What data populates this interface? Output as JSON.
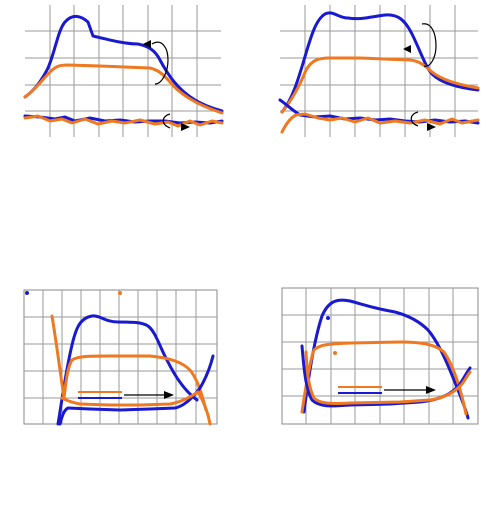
{
  "colors": {
    "series_a": "#1919d2",
    "series_b": "#f07820",
    "grid": "#9a9a9a",
    "annotation": "#000000"
  },
  "chart_data": [
    {
      "type": "line",
      "panel": "top-left",
      "title": "",
      "xlabel": "",
      "ylabel": "",
      "grid": true,
      "series": [
        {
          "color": "series_a",
          "values": [
            0.12,
            0.3,
            0.82,
            0.98,
            0.78,
            0.74,
            0.7,
            0.56,
            0.3,
            0.24,
            0.2
          ]
        },
        {
          "color": "series_b",
          "values": [
            0.1,
            0.26,
            0.58,
            0.58,
            0.57,
            0.56,
            0.55,
            0.46,
            0.3,
            0.24,
            0.2
          ]
        },
        {
          "color": "series_a",
          "values": [
            0.04,
            0.03,
            0.04,
            0.02,
            0.03,
            0.02,
            0.03,
            0.02,
            0.02,
            0.03,
            0.02
          ]
        },
        {
          "color": "series_b",
          "values": [
            0.03,
            0.02,
            0.03,
            0.02,
            0.02,
            0.02,
            0.03,
            0.01,
            0.02,
            0.03,
            0.02
          ]
        }
      ]
    },
    {
      "type": "line",
      "panel": "top-right",
      "title": "",
      "xlabel": "",
      "ylabel": "",
      "grid": true,
      "series": [
        {
          "color": "series_a",
          "values": [
            0.1,
            0.6,
            0.98,
            0.96,
            0.97,
            0.98,
            0.9,
            0.56,
            0.3,
            0.22,
            0.18
          ]
        },
        {
          "color": "series_b",
          "values": [
            0.08,
            0.5,
            0.62,
            0.61,
            0.6,
            0.6,
            0.58,
            0.5,
            0.28,
            0.2,
            0.17
          ]
        },
        {
          "color": "series_a",
          "values": [
            0.15,
            0.05,
            0.03,
            0.02,
            0.03,
            0.02,
            0.02,
            0.02,
            0.03,
            0.02,
            0.03
          ]
        },
        {
          "color": "series_b",
          "values": [
            0.18,
            0.04,
            0.02,
            0.02,
            0.02,
            0.02,
            0.02,
            0.03,
            0.02,
            0.02,
            0.03
          ]
        }
      ]
    },
    {
      "type": "line",
      "panel": "bottom-left",
      "title": "",
      "xlabel": "",
      "ylabel": "",
      "grid": true,
      "series": [
        {
          "color": "series_a",
          "values": [
            0.0,
            0.62,
            0.78,
            0.76,
            0.74,
            0.6,
            0.35,
            0.15,
            0.1,
            0.18
          ]
        },
        {
          "color": "series_b",
          "values": [
            0.9,
            0.45,
            0.5,
            0.5,
            0.49,
            0.46,
            0.4,
            0.3,
            0.15,
            0.3
          ]
        },
        {
          "color": "series_a",
          "values": [
            0.0,
            0.1,
            0.09,
            0.1,
            0.1,
            0.11,
            0.12,
            0.14,
            0.3,
            0.48
          ]
        },
        {
          "color": "series_b",
          "values": [
            0.0,
            0.12,
            0.11,
            0.11,
            0.11,
            0.12,
            0.13,
            0.16,
            0.28,
            0.4
          ]
        }
      ]
    },
    {
      "type": "line",
      "panel": "bottom-right",
      "title": "",
      "xlabel": "",
      "ylabel": "",
      "grid": true,
      "series": [
        {
          "color": "series_a",
          "values": [
            0.0,
            0.9,
            0.88,
            0.84,
            0.8,
            0.72,
            0.55,
            0.2
          ]
        },
        {
          "color": "series_b",
          "values": [
            0.0,
            0.6,
            0.61,
            0.6,
            0.6,
            0.58,
            0.5,
            0.18
          ]
        },
        {
          "color": "series_a",
          "values": [
            0.6,
            0.05,
            0.06,
            0.07,
            0.08,
            0.1,
            0.16,
            0.35
          ]
        },
        {
          "color": "series_b",
          "values": [
            0.55,
            0.08,
            0.08,
            0.08,
            0.09,
            0.1,
            0.16,
            0.3
          ]
        }
      ]
    }
  ]
}
